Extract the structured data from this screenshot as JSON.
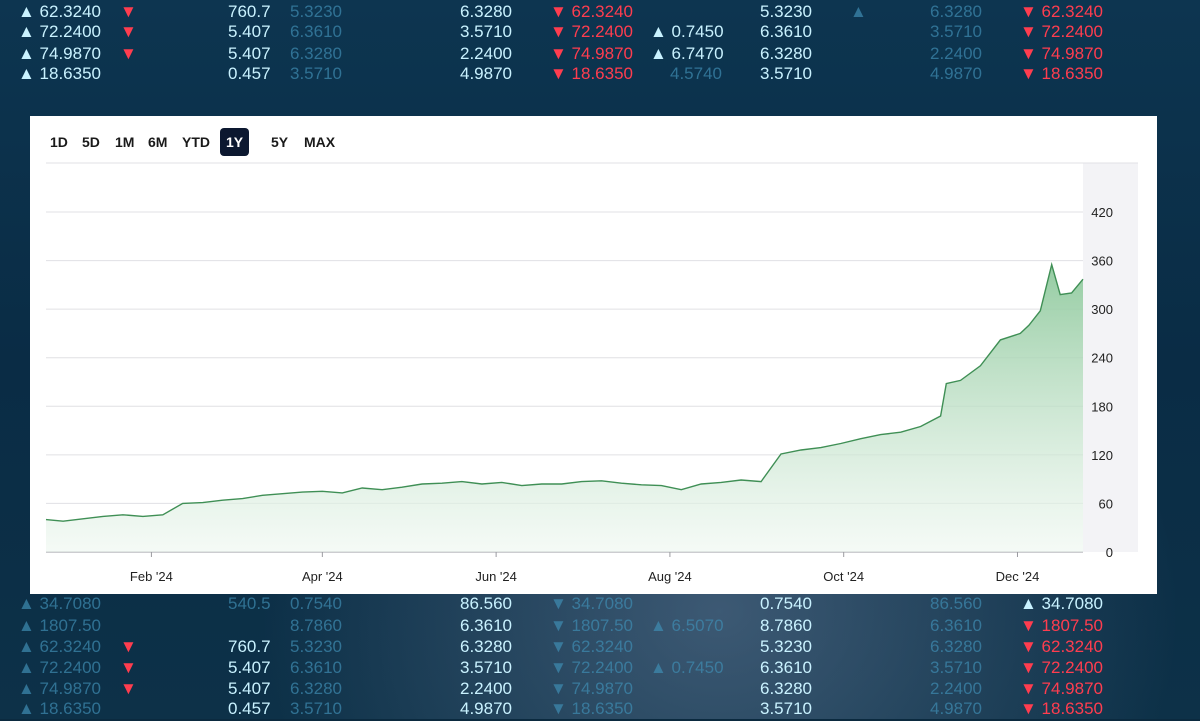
{
  "range_selector": {
    "options": [
      "1D",
      "5D",
      "1M",
      "6M",
      "YTD",
      "1Y",
      "5Y",
      "MAX"
    ],
    "selected": "1Y"
  },
  "chart_data": {
    "type": "area",
    "title": "",
    "xlabel": "",
    "ylabel": "",
    "ylim": [
      0,
      420
    ],
    "yticks": [
      0,
      60,
      120,
      180,
      240,
      300,
      360,
      420
    ],
    "y_axis_position": "right",
    "x_tick_labels": [
      "Feb '24",
      "Apr '24",
      "Jun '24",
      "Aug '24",
      "Oct '24",
      "Dec '24"
    ],
    "x_tick_dates": [
      "2024-02-01",
      "2024-04-01",
      "2024-06-01",
      "2024-08-01",
      "2024-10-01",
      "2024-12-01"
    ],
    "x_range": [
      "2023-12-26",
      "2024-12-24"
    ],
    "grid": true,
    "line_color": "#3f8f55",
    "fill_color": "#a9d8b3",
    "series": [
      {
        "x": [
          "2023-12-26",
          "2024-01-01",
          "2024-01-08",
          "2024-01-15",
          "2024-01-22",
          "2024-01-29",
          "2024-02-05",
          "2024-02-12",
          "2024-02-19",
          "2024-02-26",
          "2024-03-04",
          "2024-03-11",
          "2024-03-18",
          "2024-03-25",
          "2024-04-01",
          "2024-04-08",
          "2024-04-15",
          "2024-04-22",
          "2024-04-29",
          "2024-05-06",
          "2024-05-13",
          "2024-05-20",
          "2024-05-27",
          "2024-06-03",
          "2024-06-10",
          "2024-06-17",
          "2024-06-24",
          "2024-07-01",
          "2024-07-08",
          "2024-07-15",
          "2024-07-22",
          "2024-07-29",
          "2024-08-05",
          "2024-08-12",
          "2024-08-19",
          "2024-08-26",
          "2024-09-02",
          "2024-09-09",
          "2024-09-16",
          "2024-09-23",
          "2024-09-30",
          "2024-10-07",
          "2024-10-14",
          "2024-10-21",
          "2024-10-28",
          "2024-11-04",
          "2024-11-06",
          "2024-11-11",
          "2024-11-18",
          "2024-11-25",
          "2024-12-02",
          "2024-12-05",
          "2024-12-09",
          "2024-12-13",
          "2024-12-16",
          "2024-12-20",
          "2024-12-24"
        ],
        "values": [
          40,
          38,
          41,
          44,
          46,
          44,
          46,
          60,
          61,
          64,
          66,
          70,
          72,
          74,
          75,
          73,
          79,
          77,
          80,
          84,
          85,
          87,
          84,
          86,
          82,
          84,
          84,
          87,
          88,
          85,
          83,
          82,
          77,
          84,
          86,
          89,
          87,
          121,
          126,
          129,
          134,
          140,
          145,
          148,
          155,
          168,
          208,
          212,
          230,
          262,
          270,
          280,
          298,
          355,
          318,
          320,
          337
        ]
      }
    ]
  }
}
